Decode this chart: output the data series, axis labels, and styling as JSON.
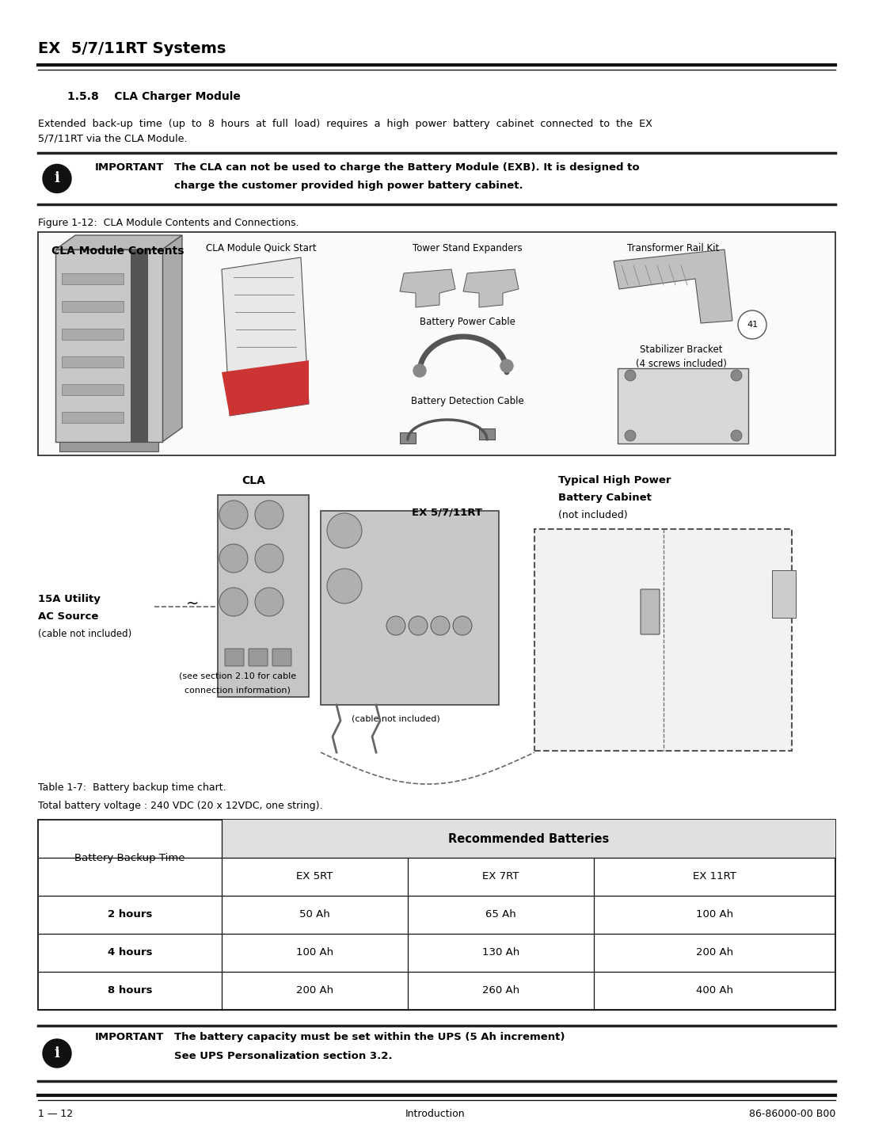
{
  "page_title": "EX  5/7/11RT Systems",
  "section_title": "1.5.8    CLA Charger Module",
  "intro_line1": "Extended  back-up  time  (up  to  8  hours  at  full  load)  requires  a  high  power  battery  cabinet  connected  to  the  EX",
  "intro_line2": "5/7/11RT via the CLA Module.",
  "important_label": "IMPORTANT",
  "important_text1": "The CLA can not be used to charge the Battery Module (EXB). It is designed to",
  "important_text2": "charge the customer provided high power battery cabinet.",
  "figure_caption": "Figure 1-12:  CLA Module Contents and Connections.",
  "cla_box_title": "CLA Module Contents",
  "table_title": "Table 1-7:  Battery backup time chart.",
  "table_subtitle": "Total battery voltage : 240 VDC (20 x 12VDC, one string).",
  "table_header_col1": "Battery Backup Time",
  "table_header_recommended": "Recommended Batteries",
  "table_col_headers": [
    "EX 5RT",
    "EX 7RT",
    "EX 11RT"
  ],
  "table_rows": [
    {
      "time": "2 hours",
      "ex5rt": "50 Ah",
      "ex7rt": "65 Ah",
      "ex11rt": "100 Ah"
    },
    {
      "time": "4 hours",
      "ex5rt": "100 Ah",
      "ex7rt": "130 Ah",
      "ex11rt": "200 Ah"
    },
    {
      "time": "8 hours",
      "ex5rt": "200 Ah",
      "ex7rt": "260 Ah",
      "ex11rt": "400 Ah"
    }
  ],
  "important2_text1": "The battery capacity must be set within the UPS (5 Ah increment)",
  "important2_text2": "See UPS Personalization section 3.2.",
  "footer_left": "1 — 12",
  "footer_center": "Introduction",
  "footer_right": "86-86000-00 B00",
  "bg_color": "#ffffff",
  "text_color": "#000000"
}
